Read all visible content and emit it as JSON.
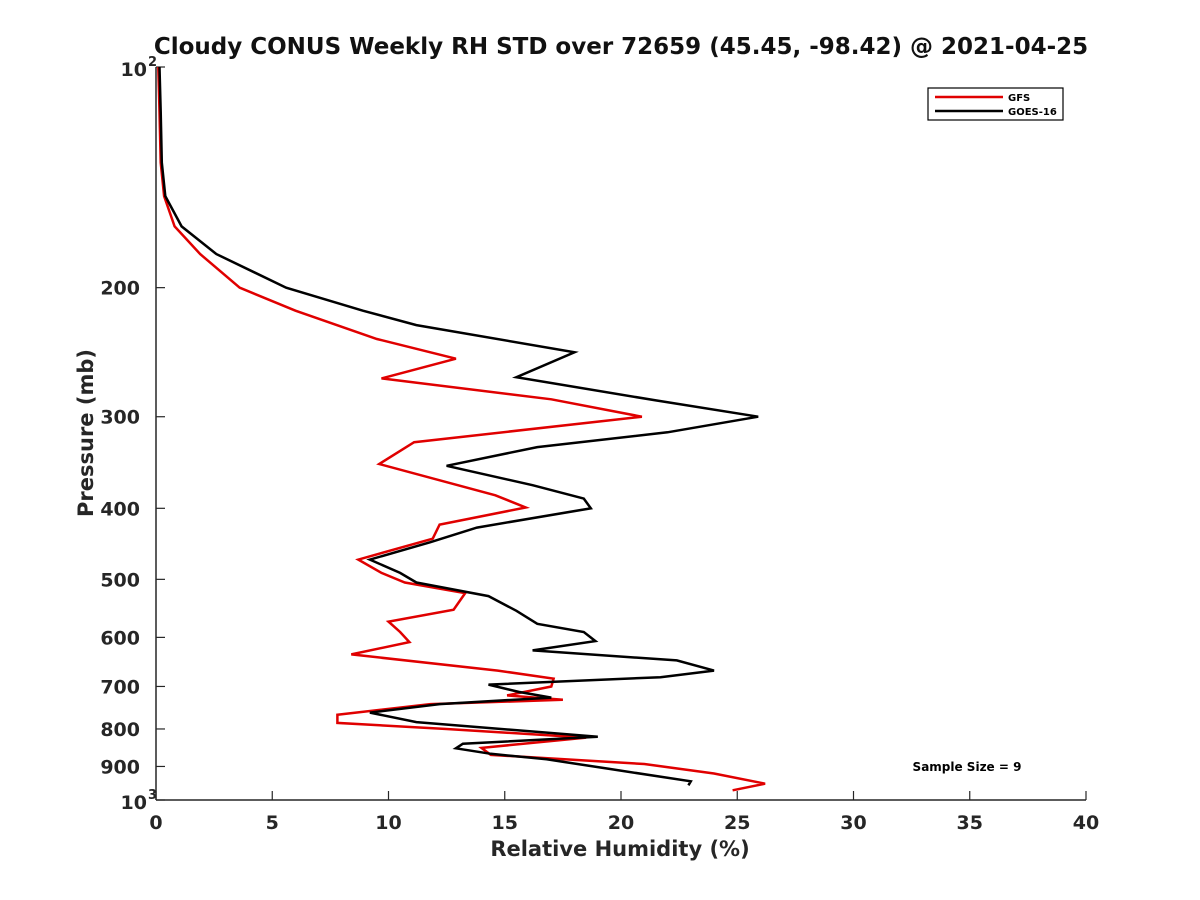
{
  "chart_data": {
    "type": "line",
    "title": "Cloudy CONUS Weekly RH STD over 72659 (45.45, -98.42) @ 2021-04-25",
    "xlabel": "Relative Humidity (%)",
    "ylabel": "Pressure (mb)",
    "xlim": [
      0,
      40
    ],
    "ylim": [
      100,
      1000
    ],
    "y_scale": "log",
    "y_reversed": true,
    "x_ticks": [
      0,
      5,
      10,
      15,
      20,
      25,
      30,
      35,
      40
    ],
    "x_tick_labels": [
      "0",
      "5",
      "10",
      "15",
      "20",
      "25",
      "30",
      "35",
      "40"
    ],
    "y_ticks": [
      {
        "value": 100,
        "base": "10",
        "exp": "2"
      },
      {
        "value": 200,
        "base": "200",
        "exp": ""
      },
      {
        "value": 300,
        "base": "300",
        "exp": ""
      },
      {
        "value": 400,
        "base": "400",
        "exp": ""
      },
      {
        "value": 500,
        "base": "500",
        "exp": ""
      },
      {
        "value": 600,
        "base": "600",
        "exp": ""
      },
      {
        "value": 700,
        "base": "700",
        "exp": ""
      },
      {
        "value": 800,
        "base": "800",
        "exp": ""
      },
      {
        "value": 900,
        "base": "900",
        "exp": ""
      },
      {
        "value": 1000,
        "base": "10",
        "exp": "3"
      }
    ],
    "grid": false,
    "legend_position": "top-right",
    "annotation": "Sample Size = 9",
    "series": [
      {
        "name": "GFS",
        "color": "#e00000",
        "points": [
          [
            0.1,
            100
          ],
          [
            0.15,
            115
          ],
          [
            0.2,
            135
          ],
          [
            0.35,
            150
          ],
          [
            0.8,
            165
          ],
          [
            1.9,
            180
          ],
          [
            3.6,
            200
          ],
          [
            6.0,
            215
          ],
          [
            9.5,
            235
          ],
          [
            12.9,
            250
          ],
          [
            9.7,
            266
          ],
          [
            17.0,
            284
          ],
          [
            20.9,
            300
          ],
          [
            11.1,
            325
          ],
          [
            9.6,
            348
          ],
          [
            14.6,
            384
          ],
          [
            15.9,
            399
          ],
          [
            12.2,
            421
          ],
          [
            11.9,
            440
          ],
          [
            8.7,
            470
          ],
          [
            9.7,
            490
          ],
          [
            10.7,
            505
          ],
          [
            13.3,
            522
          ],
          [
            12.8,
            550
          ],
          [
            10.0,
            571
          ],
          [
            10.5,
            590
          ],
          [
            10.9,
            609
          ],
          [
            8.4,
            633
          ],
          [
            14.7,
            666
          ],
          [
            17.1,
            683
          ],
          [
            17.0,
            700
          ],
          [
            15.1,
            720
          ],
          [
            17.5,
            730
          ],
          [
            11.8,
            740
          ],
          [
            7.8,
            765
          ],
          [
            7.8,
            785
          ],
          [
            12.5,
            800
          ],
          [
            18.5,
            822
          ],
          [
            14.0,
            849
          ],
          [
            14.4,
            868
          ],
          [
            21.0,
            893
          ],
          [
            24.0,
            920
          ],
          [
            26.2,
            950
          ],
          [
            24.8,
            970
          ]
        ]
      },
      {
        "name": "GOES-16",
        "color": "#000000",
        "points": [
          [
            0.15,
            100
          ],
          [
            0.2,
            115
          ],
          [
            0.25,
            135
          ],
          [
            0.4,
            150
          ],
          [
            1.1,
            165
          ],
          [
            2.6,
            180
          ],
          [
            5.6,
            200
          ],
          [
            8.9,
            215
          ],
          [
            11.2,
            225
          ],
          [
            18.0,
            245
          ],
          [
            15.5,
            265
          ],
          [
            21.5,
            285
          ],
          [
            25.9,
            300
          ],
          [
            22.0,
            315
          ],
          [
            16.4,
            330
          ],
          [
            12.5,
            350
          ],
          [
            16.2,
            372
          ],
          [
            18.4,
            388
          ],
          [
            18.7,
            400
          ],
          [
            13.8,
            425
          ],
          [
            11.8,
            445
          ],
          [
            9.2,
            470
          ],
          [
            10.5,
            490
          ],
          [
            11.2,
            505
          ],
          [
            14.3,
            527
          ],
          [
            15.5,
            552
          ],
          [
            16.4,
            575
          ],
          [
            18.4,
            590
          ],
          [
            18.9,
            607
          ],
          [
            16.2,
            625
          ],
          [
            22.4,
            645
          ],
          [
            24.0,
            666
          ],
          [
            21.7,
            680
          ],
          [
            14.3,
            696
          ],
          [
            15.6,
            712
          ],
          [
            17.0,
            725
          ],
          [
            12.2,
            740
          ],
          [
            9.2,
            760
          ],
          [
            11.2,
            783
          ],
          [
            19.0,
            820
          ],
          [
            13.2,
            838
          ],
          [
            12.9,
            850
          ],
          [
            14.4,
            865
          ],
          [
            16.8,
            880
          ],
          [
            19.5,
            907
          ],
          [
            23.0,
            943
          ],
          [
            22.9,
            955
          ]
        ]
      }
    ]
  }
}
